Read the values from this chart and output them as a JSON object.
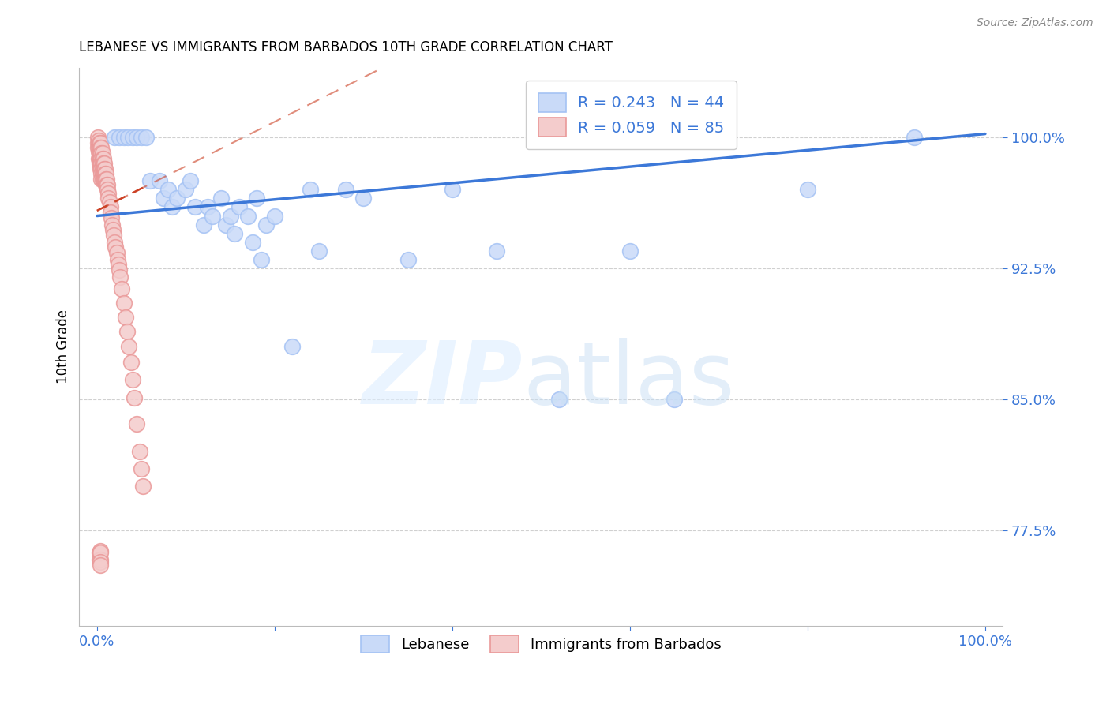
{
  "title": "LEBANESE VS IMMIGRANTS FROM BARBADOS 10TH GRADE CORRELATION CHART",
  "source": "Source: ZipAtlas.com",
  "ylabel": "10th Grade",
  "xlim": [
    -0.02,
    1.02
  ],
  "ylim": [
    0.72,
    1.04
  ],
  "x_ticks": [
    0.0,
    0.2,
    0.4,
    0.6,
    0.8,
    1.0
  ],
  "x_tick_labels": [
    "0.0%",
    "",
    "",
    "",
    "",
    "100.0%"
  ],
  "y_tick_labels": [
    "77.5%",
    "85.0%",
    "92.5%",
    "100.0%"
  ],
  "y_ticks": [
    0.775,
    0.85,
    0.925,
    1.0
  ],
  "legend_label1": "Lebanese",
  "legend_label2": "Immigrants from Barbados",
  "R1": 0.243,
  "N1": 44,
  "R2": 0.059,
  "N2": 85,
  "color_blue": "#a4c2f4",
  "color_pink": "#ea9999",
  "color_blue_fill": "#c9daf8",
  "color_pink_fill": "#f4cccc",
  "color_blue_line": "#3c78d8",
  "color_pink_line": "#cc4125",
  "blue_scatter_x": [
    0.02,
    0.025,
    0.03,
    0.035,
    0.04,
    0.045,
    0.05,
    0.055,
    0.06,
    0.07,
    0.075,
    0.08,
    0.085,
    0.09,
    0.1,
    0.105,
    0.11,
    0.12,
    0.125,
    0.13,
    0.14,
    0.145,
    0.15,
    0.155,
    0.16,
    0.17,
    0.175,
    0.18,
    0.185,
    0.19,
    0.2,
    0.22,
    0.24,
    0.25,
    0.28,
    0.3,
    0.35,
    0.4,
    0.45,
    0.52,
    0.6,
    0.65,
    0.8,
    0.92
  ],
  "blue_scatter_y": [
    1.0,
    1.0,
    1.0,
    1.0,
    1.0,
    1.0,
    1.0,
    1.0,
    0.975,
    0.975,
    0.965,
    0.97,
    0.96,
    0.965,
    0.97,
    0.975,
    0.96,
    0.95,
    0.96,
    0.955,
    0.965,
    0.95,
    0.955,
    0.945,
    0.96,
    0.955,
    0.94,
    0.965,
    0.93,
    0.95,
    0.955,
    0.88,
    0.97,
    0.935,
    0.97,
    0.965,
    0.93,
    0.97,
    0.935,
    0.85,
    0.935,
    0.85,
    0.97,
    1.0
  ],
  "pink_scatter_x": [
    0.001,
    0.001,
    0.001,
    0.002,
    0.002,
    0.002,
    0.002,
    0.003,
    0.003,
    0.003,
    0.003,
    0.003,
    0.004,
    0.004,
    0.004,
    0.004,
    0.004,
    0.004,
    0.005,
    0.005,
    0.005,
    0.005,
    0.005,
    0.005,
    0.005,
    0.006,
    0.006,
    0.006,
    0.006,
    0.006,
    0.006,
    0.007,
    0.007,
    0.007,
    0.007,
    0.007,
    0.008,
    0.008,
    0.008,
    0.008,
    0.009,
    0.009,
    0.009,
    0.01,
    0.01,
    0.01,
    0.011,
    0.011,
    0.012,
    0.012,
    0.013,
    0.013,
    0.014,
    0.015,
    0.015,
    0.016,
    0.017,
    0.018,
    0.019,
    0.02,
    0.021,
    0.022,
    0.023,
    0.024,
    0.025,
    0.026,
    0.028,
    0.03,
    0.032,
    0.034,
    0.036,
    0.038,
    0.04,
    0.042,
    0.045,
    0.048,
    0.05,
    0.052,
    0.003,
    0.003,
    0.004,
    0.004,
    0.004,
    0.004,
    0.004
  ],
  "pink_scatter_y": [
    1.0,
    0.997,
    0.994,
    0.998,
    0.995,
    0.992,
    0.988,
    0.997,
    0.994,
    0.991,
    0.988,
    0.985,
    0.997,
    0.994,
    0.991,
    0.988,
    0.985,
    0.982,
    0.994,
    0.991,
    0.988,
    0.985,
    0.982,
    0.979,
    0.976,
    0.991,
    0.988,
    0.985,
    0.982,
    0.979,
    0.976,
    0.988,
    0.985,
    0.982,
    0.979,
    0.976,
    0.985,
    0.982,
    0.979,
    0.976,
    0.982,
    0.979,
    0.976,
    0.979,
    0.976,
    0.973,
    0.976,
    0.973,
    0.973,
    0.97,
    0.968,
    0.965,
    0.963,
    0.96,
    0.957,
    0.954,
    0.95,
    0.947,
    0.944,
    0.94,
    0.937,
    0.934,
    0.93,
    0.927,
    0.924,
    0.92,
    0.913,
    0.905,
    0.897,
    0.889,
    0.88,
    0.871,
    0.861,
    0.851,
    0.836,
    0.82,
    0.81,
    0.8,
    0.762,
    0.758,
    0.763,
    0.758,
    0.762,
    0.757,
    0.755
  ]
}
